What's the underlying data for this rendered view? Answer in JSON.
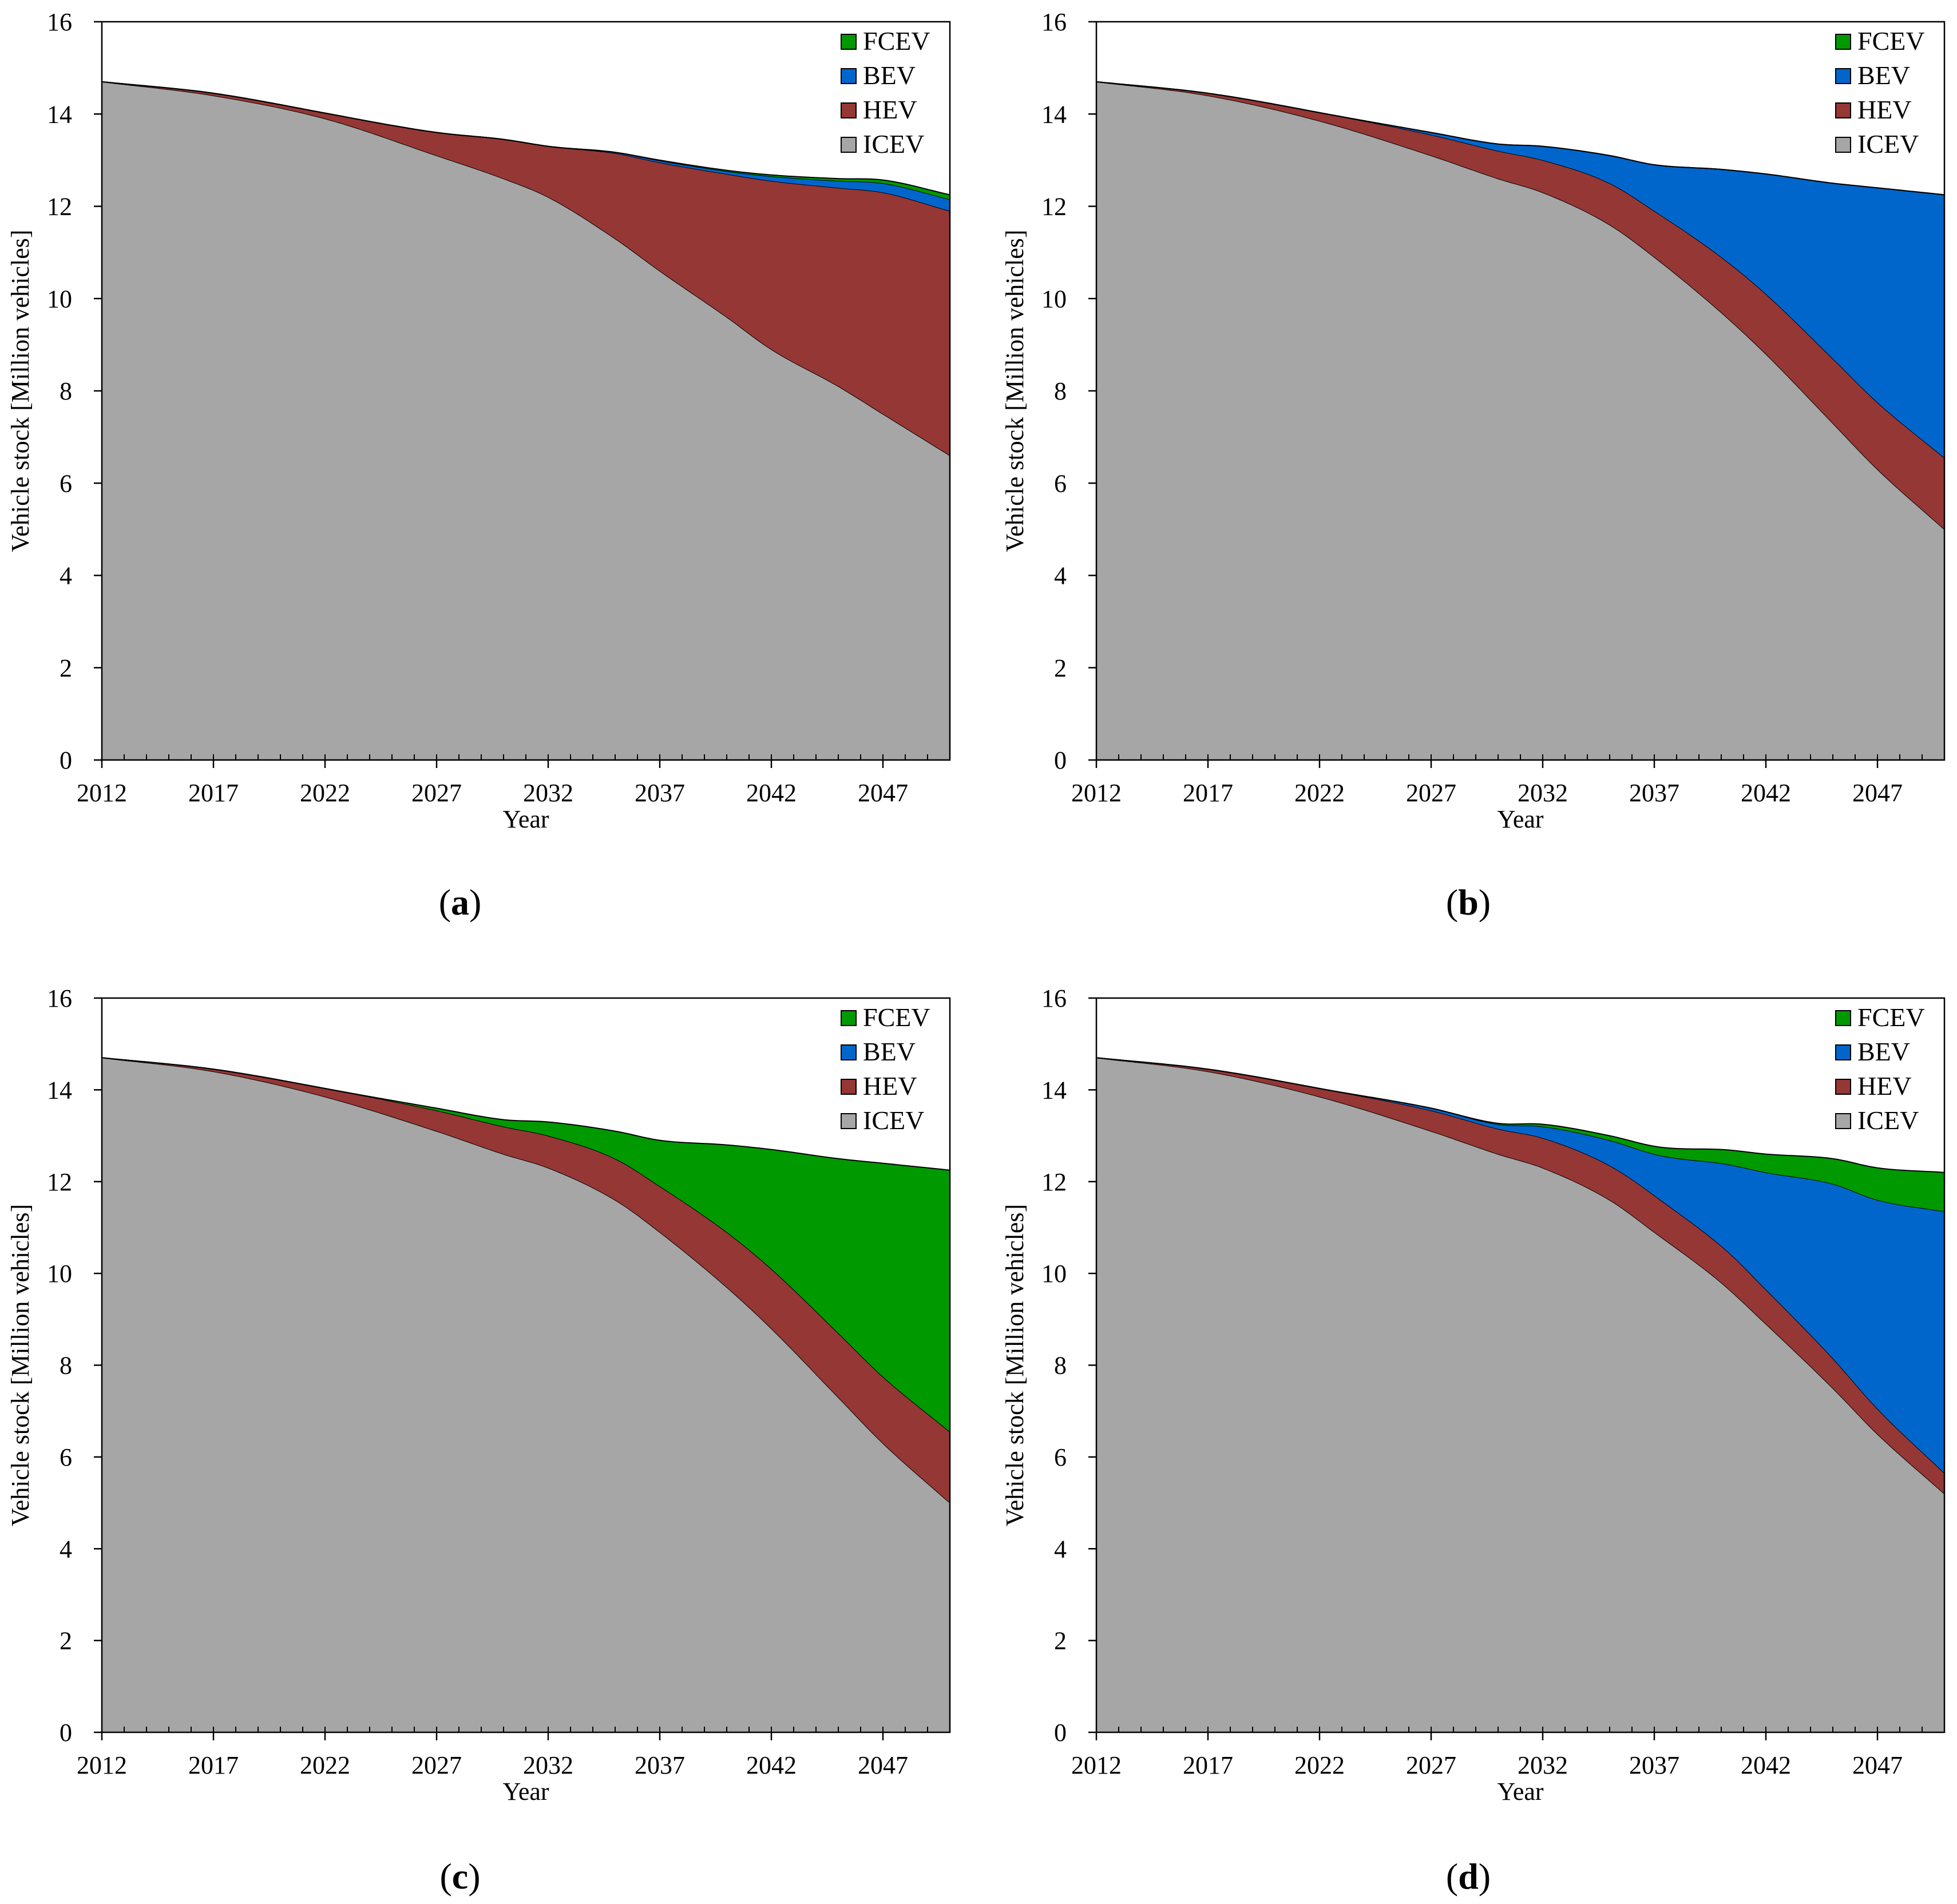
{
  "figure": {
    "panels_order": [
      "a",
      "b",
      "c",
      "d"
    ],
    "colors": {
      "ICEV": "#a6a6a6",
      "HEV": "#953735",
      "BEV": "#0066cc",
      "FCEV": "#009900",
      "outline": "#000000"
    }
  },
  "chart_data": [
    {
      "panel": "a",
      "panel_label_open": "(",
      "panel_label_letter": "a",
      "panel_label_close": ")",
      "type": "area",
      "stacked": true,
      "title": "",
      "xlabel": "Year",
      "ylabel": "Vehicle stock [Million vehicles]",
      "xlim": [
        2012,
        2050
      ],
      "ylim": [
        0,
        16
      ],
      "xticks": [
        "2012",
        "2017",
        "2022",
        "2027",
        "2032",
        "2037",
        "2042",
        "2047"
      ],
      "yticks": [
        "0",
        "2",
        "4",
        "6",
        "8",
        "10",
        "12",
        "14",
        "16"
      ],
      "legend": [
        "FCEV",
        "BEV",
        "HEV",
        "ICEV"
      ],
      "x": [
        2012,
        2017,
        2022,
        2027,
        2030,
        2032,
        2035,
        2037,
        2040,
        2042,
        2045,
        2047,
        2050
      ],
      "series": [
        {
          "name": "ICEV",
          "values": [
            14.7,
            14.4,
            13.9,
            13.1,
            12.6,
            12.2,
            11.3,
            10.6,
            9.6,
            8.9,
            8.1,
            7.5,
            6.6
          ]
        },
        {
          "name": "HEV",
          "values": [
            0,
            0.05,
            0.12,
            0.5,
            0.85,
            1.1,
            1.85,
            2.35,
            3.1,
            3.65,
            4.3,
            4.8,
            5.3
          ]
        },
        {
          "name": "BEV",
          "values": [
            0,
            0,
            0,
            0,
            0,
            0,
            0.02,
            0.04,
            0.06,
            0.1,
            0.15,
            0.2,
            0.25
          ]
        },
        {
          "name": "FCEV",
          "values": [
            0,
            0,
            0,
            0,
            0,
            0,
            0,
            0.01,
            0.02,
            0.03,
            0.05,
            0.07,
            0.1
          ]
        }
      ]
    },
    {
      "panel": "b",
      "panel_label_open": "(",
      "panel_label_letter": "b",
      "panel_label_close": ")",
      "type": "area",
      "stacked": true,
      "title": "",
      "xlabel": "Year",
      "ylabel": "Vehicle stock [Million vehicles]",
      "xlim": [
        2012,
        2050
      ],
      "ylim": [
        0,
        16
      ],
      "xticks": [
        "2012",
        "2017",
        "2022",
        "2027",
        "2032",
        "2037",
        "2042",
        "2047"
      ],
      "yticks": [
        "0",
        "2",
        "4",
        "6",
        "8",
        "10",
        "12",
        "14",
        "16"
      ],
      "legend": [
        "FCEV",
        "BEV",
        "HEV",
        "ICEV"
      ],
      "x": [
        2012,
        2017,
        2022,
        2027,
        2030,
        2032,
        2035,
        2037,
        2040,
        2042,
        2045,
        2047,
        2050
      ],
      "series": [
        {
          "name": "ICEV",
          "values": [
            14.7,
            14.4,
            13.85,
            13.1,
            12.6,
            12.3,
            11.6,
            10.9,
            9.7,
            8.8,
            7.3,
            6.3,
            5.0
          ]
        },
        {
          "name": "HEV",
          "values": [
            0,
            0.05,
            0.18,
            0.45,
            0.6,
            0.7,
            0.9,
            1.0,
            1.2,
            1.3,
            1.4,
            1.45,
            1.55
          ]
        },
        {
          "name": "BEV",
          "values": [
            0,
            0,
            0,
            0.05,
            0.15,
            0.3,
            0.6,
            1.0,
            1.9,
            2.6,
            3.8,
            4.65,
            5.7
          ]
        },
        {
          "name": "FCEV",
          "values": [
            0,
            0,
            0,
            0,
            0,
            0,
            0,
            0,
            0,
            0,
            0,
            0,
            0
          ]
        }
      ]
    },
    {
      "panel": "c",
      "panel_label_open": "(",
      "panel_label_letter": "c",
      "panel_label_close": ")",
      "type": "area",
      "stacked": true,
      "title": "",
      "xlabel": "Year",
      "ylabel": "Vehicle stock [Million vehicles]",
      "xlim": [
        2012,
        2050
      ],
      "ylim": [
        0,
        16
      ],
      "xticks": [
        "2012",
        "2017",
        "2022",
        "2027",
        "2032",
        "2037",
        "2042",
        "2047"
      ],
      "yticks": [
        "0",
        "2",
        "4",
        "6",
        "8",
        "10",
        "12",
        "14",
        "16"
      ],
      "legend": [
        "FCEV",
        "BEV",
        "HEV",
        "ICEV"
      ],
      "x": [
        2012,
        2017,
        2022,
        2027,
        2030,
        2032,
        2035,
        2037,
        2040,
        2042,
        2045,
        2047,
        2050
      ],
      "series": [
        {
          "name": "ICEV",
          "values": [
            14.7,
            14.4,
            13.85,
            13.1,
            12.6,
            12.3,
            11.6,
            10.9,
            9.7,
            8.8,
            7.3,
            6.3,
            5.0
          ]
        },
        {
          "name": "HEV",
          "values": [
            0,
            0.05,
            0.18,
            0.45,
            0.6,
            0.7,
            0.9,
            1.0,
            1.2,
            1.3,
            1.4,
            1.45,
            1.55
          ]
        },
        {
          "name": "BEV",
          "values": [
            0,
            0,
            0,
            0,
            0,
            0,
            0,
            0,
            0,
            0,
            0,
            0,
            0
          ]
        },
        {
          "name": "FCEV",
          "values": [
            0,
            0,
            0,
            0.05,
            0.15,
            0.3,
            0.6,
            1.0,
            1.9,
            2.6,
            3.8,
            4.65,
            5.7
          ]
        }
      ]
    },
    {
      "panel": "d",
      "panel_label_open": "(",
      "panel_label_letter": "d",
      "panel_label_close": ")",
      "type": "area",
      "stacked": true,
      "title": "",
      "xlabel": "Year",
      "ylabel": "Vehicle stock [Million vehicles]",
      "xlim": [
        2012,
        2050
      ],
      "ylim": [
        0,
        16
      ],
      "xticks": [
        "2012",
        "2017",
        "2022",
        "2027",
        "2032",
        "2037",
        "2042",
        "2047"
      ],
      "yticks": [
        "0",
        "2",
        "4",
        "6",
        "8",
        "10",
        "12",
        "14",
        "16"
      ],
      "legend": [
        "FCEV",
        "BEV",
        "HEV",
        "ICEV"
      ],
      "x": [
        2012,
        2017,
        2022,
        2027,
        2030,
        2032,
        2035,
        2037,
        2040,
        2042,
        2045,
        2047,
        2050
      ],
      "series": [
        {
          "name": "ICEV",
          "values": [
            14.7,
            14.4,
            13.85,
            13.1,
            12.6,
            12.3,
            11.6,
            10.9,
            9.8,
            8.9,
            7.5,
            6.5,
            5.2
          ]
        },
        {
          "name": "HEV",
          "values": [
            0,
            0.05,
            0.18,
            0.45,
            0.55,
            0.65,
            0.75,
            0.8,
            0.8,
            0.75,
            0.65,
            0.55,
            0.45
          ]
        },
        {
          "name": "BEV",
          "values": [
            0,
            0,
            0,
            0.05,
            0.1,
            0.25,
            0.55,
            0.9,
            1.8,
            2.55,
            3.8,
            4.55,
            5.7
          ]
        },
        {
          "name": "FCEV",
          "values": [
            0,
            0,
            0,
            0,
            0.02,
            0.05,
            0.1,
            0.17,
            0.3,
            0.4,
            0.55,
            0.7,
            0.85
          ]
        }
      ]
    }
  ]
}
